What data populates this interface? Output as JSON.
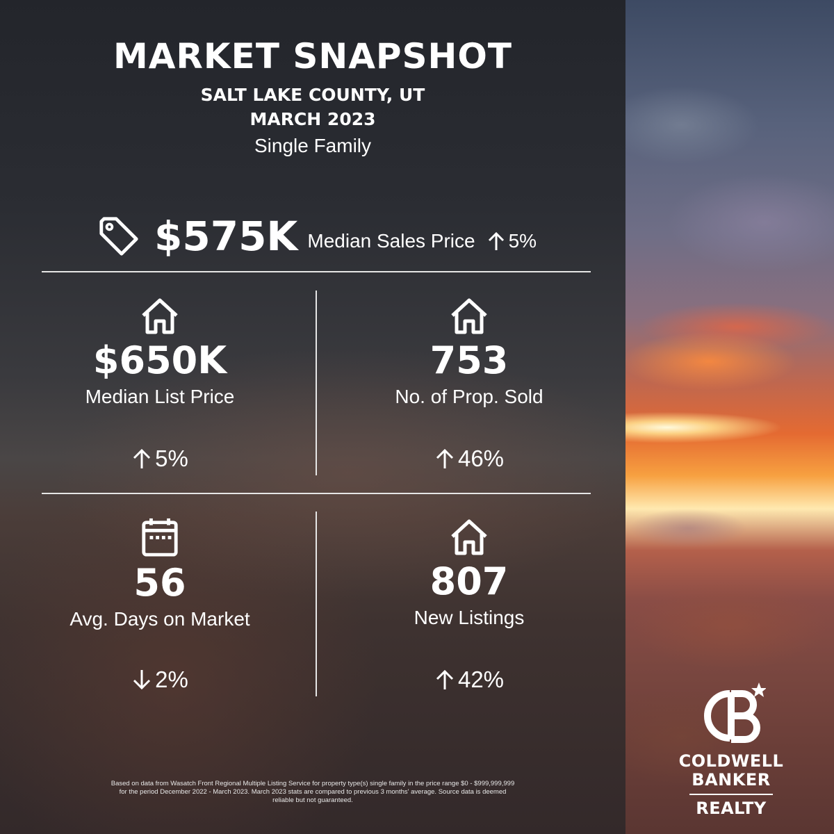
{
  "header": {
    "title": "MARKET SNAPSHOT",
    "location": "SALT LAKE COUNTY, UT",
    "period": "MARCH 2023",
    "property_type": "Single Family"
  },
  "hero": {
    "icon": "price-tag-icon",
    "value": "$575K",
    "label": "Median Sales Price",
    "change_direction": "up",
    "change": "5%"
  },
  "stats": [
    {
      "icon": "house-icon",
      "value": "$650K",
      "label": "Median List Price",
      "change_direction": "up",
      "change": "5%"
    },
    {
      "icon": "house-icon",
      "value": "753",
      "label": "No. of Prop. Sold",
      "change_direction": "up",
      "change": "46%"
    },
    {
      "icon": "calendar-icon",
      "value": "56",
      "label": "Avg. Days on Market",
      "change_direction": "down",
      "change": "2%"
    },
    {
      "icon": "house-icon",
      "value": "807",
      "label": "New Listings",
      "change_direction": "up",
      "change": "42%"
    }
  ],
  "disclaimer": {
    "line1": "Based on data from Wasatch Front Regional Multiple Listing Service for property type(s) single family in the price range $0 - $999,999,999",
    "line2": "for the period December 2022 - March 2023. March 2023 stats are compared to previous 3 months' average. Source data is deemed",
    "line3": "reliable but not guaranteed."
  },
  "logo": {
    "line1": "COLDWELL",
    "line2": "BANKER",
    "line3": "REALTY"
  },
  "colors": {
    "text": "#ffffff",
    "divider": "#e6e6e6",
    "panel": "#2a2a30"
  }
}
